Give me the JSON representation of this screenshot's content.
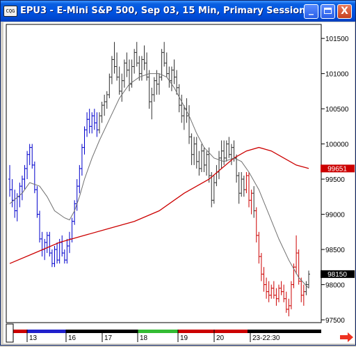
{
  "window": {
    "icon_label": "CQG",
    "title": "EPU3 - E-Mini S&P 500, Sep 03, 15 Min, Primary Session",
    "buttons": {
      "minimize": "_",
      "maximize": "",
      "close": "X"
    }
  },
  "colors": {
    "up": "#0000cc",
    "down": "#cc0000",
    "neutral": "#303030",
    "ma_long": "#cc0000",
    "ma_short": "#707070",
    "price_box": "#cc0000"
  },
  "chart_data": {
    "type": "bar",
    "ylim": [
      97500,
      101650
    ],
    "yticks": [
      "101500",
      "101000",
      "100500",
      "100000",
      "99500",
      "99000",
      "98500",
      "98000",
      "97500"
    ],
    "last_price": "98150",
    "ma_value": "99651",
    "dates": [
      "13",
      "16",
      "17",
      "18",
      "19",
      "20",
      "23-22:30"
    ],
    "bars": [
      [
        99500,
        99700,
        99250,
        99350
      ],
      [
        99350,
        99500,
        99100,
        99200
      ],
      [
        99200,
        99350,
        98950,
        99050
      ],
      [
        99050,
        99300,
        98900,
        99250
      ],
      [
        99250,
        99450,
        99100,
        99400
      ],
      [
        99400,
        99550,
        99200,
        99500
      ],
      [
        99500,
        99700,
        99350,
        99650
      ],
      [
        99650,
        99900,
        99500,
        99850
      ],
      [
        99850,
        100000,
        99700,
        99950
      ],
      [
        99950,
        100000,
        99650,
        99700
      ],
      [
        99700,
        99750,
        99300,
        99350
      ],
      [
        99350,
        99400,
        98950,
        99000
      ],
      [
        99000,
        99050,
        98600,
        98650
      ],
      [
        98650,
        98750,
        98400,
        98500
      ],
      [
        98500,
        98650,
        98350,
        98600
      ],
      [
        98600,
        98750,
        98450,
        98700
      ],
      [
        98700,
        98750,
        98400,
        98450
      ],
      [
        98450,
        98500,
        98250,
        98300
      ],
      [
        98300,
        98550,
        98250,
        98500
      ],
      [
        98500,
        98600,
        98300,
        98350
      ],
      [
        98350,
        98650,
        98300,
        98600
      ],
      [
        98600,
        98700,
        98400,
        98450
      ],
      [
        98450,
        98500,
        98300,
        98350
      ],
      [
        98350,
        98650,
        98300,
        98550
      ],
      [
        98550,
        98750,
        98450,
        98650
      ],
      [
        98650,
        98950,
        98600,
        98900
      ],
      [
        98900,
        99200,
        98850,
        99150
      ],
      [
        99150,
        99500,
        99050,
        99400
      ],
      [
        99400,
        99700,
        99300,
        99650
      ],
      [
        99650,
        100000,
        99550,
        99950
      ],
      [
        99950,
        100250,
        99850,
        100200
      ],
      [
        100200,
        100450,
        100100,
        100350
      ],
      [
        100350,
        100500,
        100150,
        100250
      ],
      [
        100250,
        100450,
        100150,
        100400
      ],
      [
        100400,
        100500,
        100200,
        100300
      ],
      [
        100300,
        100450,
        100100,
        100200
      ],
      [
        100200,
        100450,
        100150,
        100400
      ],
      [
        100400,
        100600,
        100300,
        100550
      ],
      [
        100550,
        100700,
        100400,
        100600
      ],
      [
        100600,
        100750,
        100500,
        100700
      ],
      [
        100700,
        101000,
        100650,
        100950
      ],
      [
        100950,
        101250,
        100850,
        101200
      ],
      [
        101200,
        101450,
        101000,
        101100
      ],
      [
        101100,
        101300,
        100900,
        100950
      ],
      [
        100950,
        101100,
        100700,
        100750
      ],
      [
        100750,
        101000,
        100600,
        100900
      ],
      [
        100900,
        101200,
        100800,
        101150
      ],
      [
        101150,
        101300,
        100950,
        101050
      ],
      [
        101050,
        101200,
        100750,
        100850
      ],
      [
        100850,
        101200,
        100800,
        101100
      ],
      [
        101100,
        101350,
        101000,
        101300
      ],
      [
        101300,
        101450,
        101100,
        101150
      ],
      [
        101150,
        101250,
        100900,
        101000
      ],
      [
        101000,
        101250,
        100900,
        101200
      ],
      [
        101200,
        101400,
        101050,
        101150
      ],
      [
        101150,
        101300,
        100900,
        100950
      ],
      [
        100950,
        101050,
        100500,
        100600
      ],
      [
        100600,
        100800,
        100350,
        100700
      ],
      [
        100700,
        100950,
        100600,
        100900
      ],
      [
        100900,
        101050,
        100700,
        100850
      ],
      [
        100850,
        101000,
        100700,
        100950
      ],
      [
        100950,
        101350,
        100900,
        101300
      ],
      [
        101300,
        101450,
        101100,
        101150
      ],
      [
        101150,
        101300,
        100950,
        101000
      ],
      [
        101000,
        101100,
        100800,
        100900
      ],
      [
        100900,
        101100,
        100750,
        101050
      ],
      [
        101050,
        101200,
        100850,
        100950
      ],
      [
        100950,
        101050,
        100700,
        100800
      ],
      [
        100800,
        100850,
        100450,
        100550
      ],
      [
        100550,
        100700,
        100300,
        100400
      ],
      [
        100400,
        100550,
        100200,
        100500
      ],
      [
        100500,
        100650,
        100300,
        100400
      ],
      [
        100400,
        100550,
        100000,
        100100
      ],
      [
        100100,
        100150,
        99700,
        99850
      ],
      [
        99850,
        100100,
        99700,
        100000
      ],
      [
        100000,
        100100,
        99650,
        99750
      ],
      [
        99750,
        99900,
        99550,
        99650
      ],
      [
        99650,
        100000,
        99600,
        99900
      ],
      [
        99900,
        99950,
        99600,
        99700
      ],
      [
        99700,
        99900,
        99550,
        99850
      ],
      [
        99850,
        99950,
        99450,
        99550
      ],
      [
        99550,
        99600,
        99100,
        99200
      ],
      [
        99200,
        99550,
        99150,
        99450
      ],
      [
        99450,
        99700,
        99400,
        99600
      ],
      [
        99600,
        99900,
        99500,
        99800
      ],
      [
        99800,
        100050,
        99650,
        99900
      ],
      [
        99900,
        100050,
        99700,
        99800
      ],
      [
        99800,
        100050,
        99750,
        100000
      ],
      [
        100000,
        100100,
        99800,
        99850
      ],
      [
        99850,
        100000,
        99700,
        99950
      ],
      [
        99950,
        100050,
        99750,
        99800
      ],
      [
        99800,
        99850,
        99450,
        99550
      ],
      [
        99550,
        99600,
        99150,
        99300
      ],
      [
        99300,
        99600,
        99250,
        99500
      ],
      [
        99500,
        99550,
        99250,
        99350
      ],
      [
        99350,
        99600,
        99300,
        99550
      ],
      [
        99550,
        99600,
        99100,
        99200
      ],
      [
        99200,
        99350,
        99000,
        99300
      ],
      [
        99300,
        99400,
        98950,
        99050
      ],
      [
        99050,
        99100,
        98600,
        98700
      ],
      [
        98700,
        98750,
        98300,
        98400
      ],
      [
        98400,
        98450,
        98050,
        98150
      ],
      [
        98150,
        98250,
        97900,
        98000
      ],
      [
        98000,
        98100,
        97800,
        97900
      ],
      [
        97900,
        98050,
        97750,
        97850
      ],
      [
        97850,
        98000,
        97800,
        97950
      ],
      [
        97950,
        98050,
        97800,
        97850
      ],
      [
        97850,
        97950,
        97700,
        97800
      ],
      [
        97800,
        98000,
        97750,
        97950
      ],
      [
        97950,
        98050,
        97850,
        97900
      ],
      [
        97900,
        98000,
        97750,
        97800
      ],
      [
        97800,
        97900,
        97600,
        97650
      ],
      [
        97650,
        97800,
        97550,
        97700
      ],
      [
        97700,
        98050,
        97650,
        98000
      ],
      [
        98000,
        98300,
        97950,
        98250
      ],
      [
        98250,
        98700,
        98150,
        98450
      ],
      [
        98450,
        98500,
        98000,
        98050
      ],
      [
        98050,
        98100,
        97750,
        97850
      ],
      [
        97850,
        98000,
        97700,
        97900
      ],
      [
        97900,
        98050,
        97850,
        98000
      ],
      [
        98000,
        98200,
        97950,
        98150
      ]
    ],
    "ma_long": [
      [
        0,
        98300
      ],
      [
        10,
        98450
      ],
      [
        20,
        98600
      ],
      [
        30,
        98700
      ],
      [
        40,
        98800
      ],
      [
        50,
        98900
      ],
      [
        60,
        99050
      ],
      [
        70,
        99300
      ],
      [
        80,
        99500
      ],
      [
        85,
        99650
      ],
      [
        90,
        99800
      ],
      [
        95,
        99900
      ],
      [
        100,
        99950
      ],
      [
        105,
        99900
      ],
      [
        110,
        99800
      ],
      [
        115,
        99700
      ],
      [
        120,
        99651
      ]
    ],
    "ma_short": [
      [
        0,
        99150
      ],
      [
        5,
        99300
      ],
      [
        8,
        99450
      ],
      [
        12,
        99400
      ],
      [
        15,
        99250
      ],
      [
        18,
        99050
      ],
      [
        22,
        98950
      ],
      [
        24,
        98920
      ],
      [
        26,
        99050
      ],
      [
        28,
        99250
      ],
      [
        30,
        99500
      ],
      [
        33,
        99800
      ],
      [
        36,
        100050
      ],
      [
        40,
        100350
      ],
      [
        44,
        100650
      ],
      [
        48,
        100850
      ],
      [
        52,
        100950
      ],
      [
        56,
        101000
      ],
      [
        60,
        101000
      ],
      [
        63,
        100950
      ],
      [
        66,
        100800
      ],
      [
        69,
        100600
      ],
      [
        72,
        100400
      ],
      [
        75,
        100150
      ],
      [
        78,
        99950
      ],
      [
        82,
        99800
      ],
      [
        86,
        99750
      ],
      [
        90,
        99800
      ],
      [
        93,
        99750
      ],
      [
        96,
        99600
      ],
      [
        100,
        99350
      ],
      [
        104,
        99000
      ],
      [
        108,
        98650
      ],
      [
        112,
        98350
      ],
      [
        116,
        98100
      ],
      [
        120,
        97950
      ]
    ]
  }
}
